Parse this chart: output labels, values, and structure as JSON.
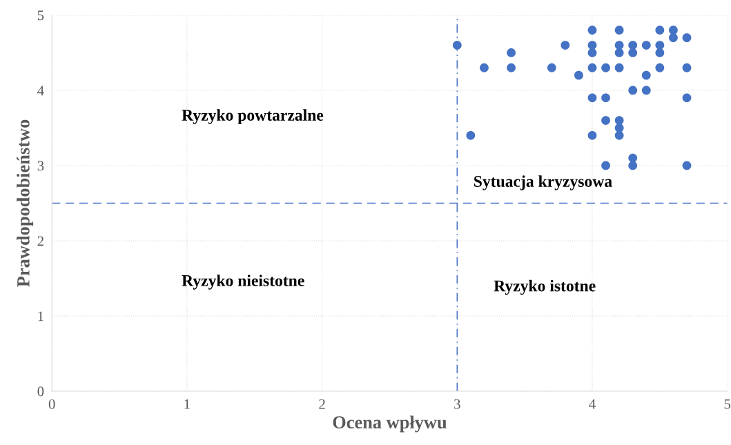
{
  "chart_data": {
    "type": "scatter",
    "xlabel": "Ocena wpływu",
    "ylabel": "Prawdopodobieństwo",
    "x": [
      3.0,
      3.1,
      3.2,
      3.4,
      3.4,
      3.7,
      3.8,
      3.9,
      4.0,
      4.0,
      4.0,
      4.0,
      4.0,
      4.0,
      4.1,
      4.1,
      4.1,
      4.1,
      4.2,
      4.2,
      4.2,
      4.2,
      4.2,
      4.2,
      4.2,
      4.3,
      4.3,
      4.3,
      4.3,
      4.3,
      4.4,
      4.4,
      4.4,
      4.5,
      4.5,
      4.5,
      4.5,
      4.6,
      4.6,
      4.7,
      4.7,
      4.7,
      4.7
    ],
    "values": [
      4.6,
      3.4,
      4.3,
      4.5,
      4.3,
      4.3,
      4.6,
      4.2,
      4.8,
      4.6,
      4.5,
      4.3,
      3.9,
      3.4,
      4.3,
      3.9,
      3.6,
      3.0,
      4.8,
      4.6,
      4.5,
      4.3,
      3.6,
      3.5,
      3.4,
      4.6,
      4.5,
      4.0,
      3.1,
      3.0,
      4.6,
      4.2,
      4.0,
      4.8,
      4.6,
      4.5,
      4.3,
      4.8,
      4.7,
      4.7,
      4.3,
      3.9,
      3.0
    ],
    "color": "#4472c4",
    "marker": "circle",
    "xlim": [
      0,
      5
    ],
    "ylim": [
      0,
      5
    ],
    "xticks": [
      0,
      1,
      2,
      3,
      4,
      5
    ],
    "yticks": [
      0,
      1,
      2,
      3,
      4,
      5
    ],
    "grid": true,
    "ref_lines": [
      {
        "axis": "x",
        "value": 3,
        "color": "#4472c4",
        "line_style": "dashdot"
      },
      {
        "axis": "y",
        "value": 2.5,
        "color": "#4472c4",
        "line_style": "dashed"
      }
    ],
    "annotations": [
      "Ryzyko powtarzalne",
      "Sytuacja kryzysowa",
      "Ryzyko nieistotne",
      "Ryzyko istotne"
    ]
  }
}
